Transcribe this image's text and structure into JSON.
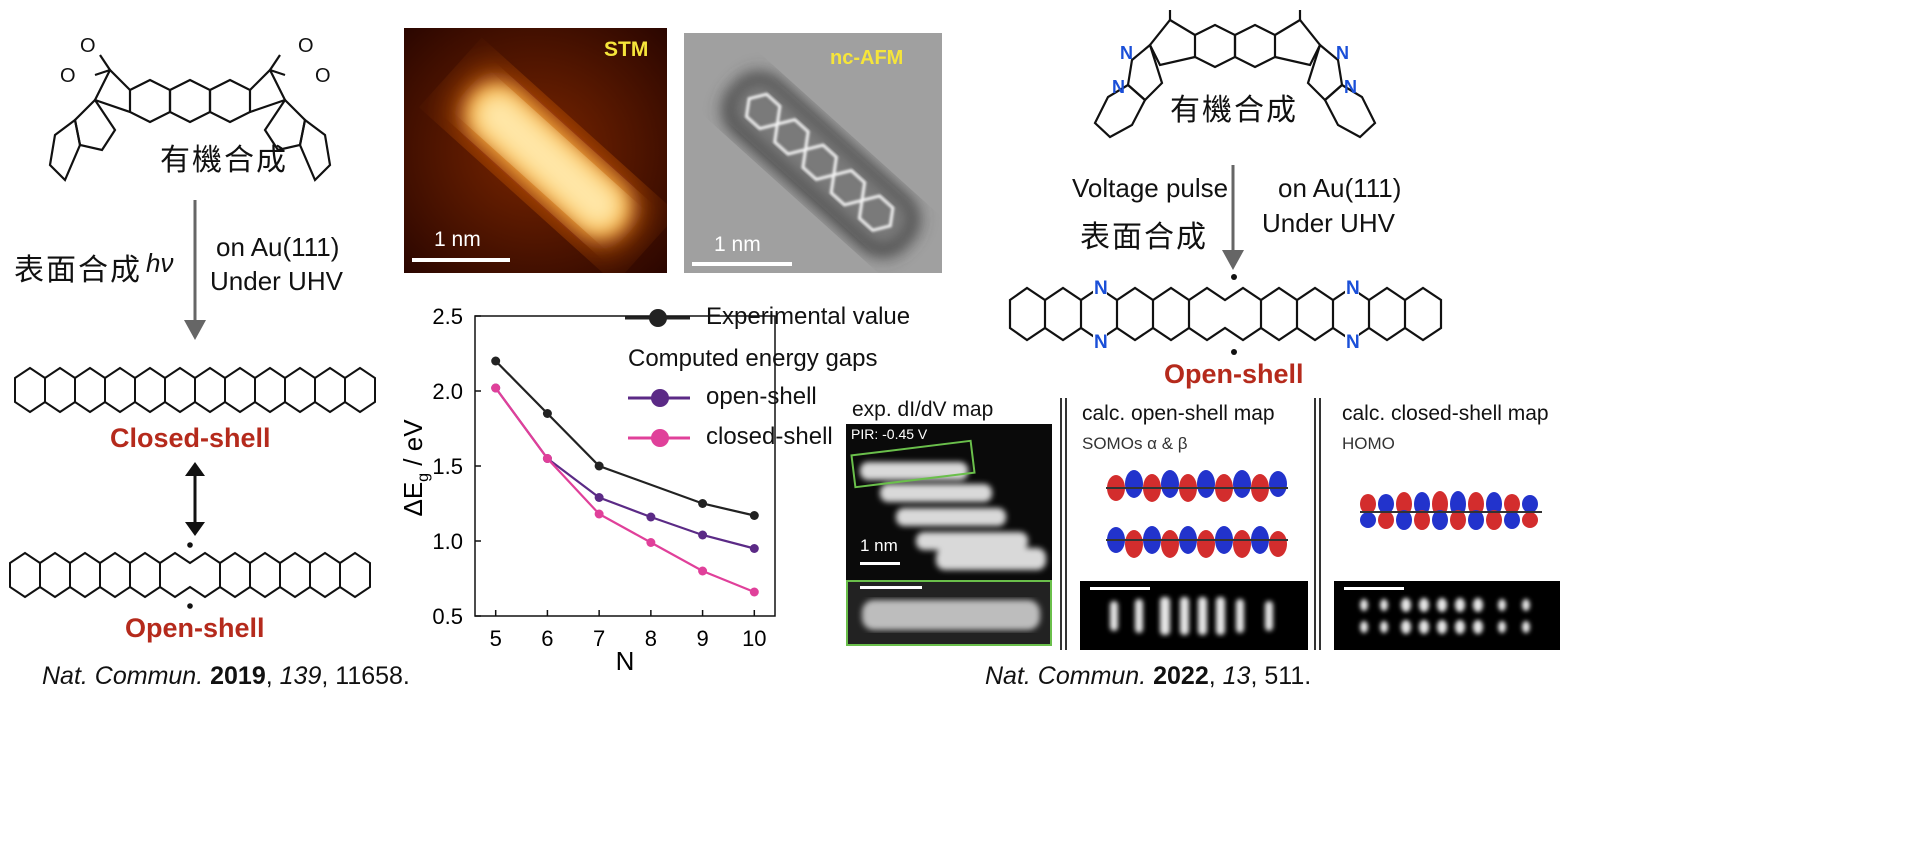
{
  "left": {
    "synth_label": "有機合成",
    "surface_label": "表面合成",
    "hv": "hν",
    "condition_1": "on Au(111)",
    "condition_2": "Under UHV",
    "closed_shell": "Closed-shell",
    "open_shell": "Open-shell",
    "citation": {
      "journal": "Nat. Commun.",
      "year": "2019",
      "volume": "139",
      "pages": ", 11658."
    }
  },
  "images": {
    "stm_label": "STM",
    "afm_label": "nc-AFM",
    "scale_stm": "1 nm",
    "scale_afm": "1 nm"
  },
  "chart_data": {
    "type": "line",
    "x": [
      5,
      6,
      7,
      8,
      9,
      10
    ],
    "xlabel": "N",
    "ylabel": "ΔEg / eV",
    "xlim": [
      4.6,
      10.4
    ],
    "ylim": [
      0.5,
      2.5
    ],
    "xticks": [
      5,
      6,
      7,
      8,
      9,
      10
    ],
    "yticks": [
      0.5,
      1.0,
      1.5,
      2.0,
      2.5
    ],
    "yticklabels": [
      "0.5",
      "1.0",
      "1.5",
      "2.0",
      "2.5"
    ],
    "legend_group_title": "Computed energy gaps",
    "series": [
      {
        "name": "Experimental value",
        "color": "#222222",
        "values": [
          2.2,
          1.85,
          1.5,
          null,
          1.25,
          1.17
        ]
      },
      {
        "name": "open-shell",
        "color": "#5b2a86",
        "values": [
          2.02,
          1.55,
          1.29,
          1.16,
          1.04,
          0.95
        ]
      },
      {
        "name": "closed-shell",
        "color": "#e0409a",
        "values": [
          2.02,
          1.55,
          1.18,
          0.99,
          0.8,
          0.66
        ]
      }
    ]
  },
  "right": {
    "synth_label": "有機合成",
    "pulse_label": "Voltage pulse",
    "surface_label": "表面合成",
    "condition_1": "on Au(111)",
    "condition_2": "Under UHV",
    "open_shell": "Open-shell",
    "n_label": "N",
    "maps": {
      "exp_title": "exp. dI/dV map",
      "exp_pir": "PIR: -0.45 V",
      "exp_scale": "1 nm",
      "open_title": "calc. open-shell map",
      "open_sub": "SOMOs α & β",
      "closed_title": "calc. closed-shell map",
      "closed_sub": "HOMO"
    },
    "citation": {
      "journal": "Nat. Commun.",
      "year": "2022",
      "volume": "13",
      "pages": ", 511."
    }
  }
}
